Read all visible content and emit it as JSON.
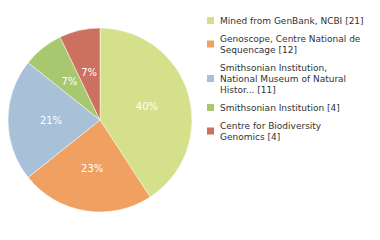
{
  "chart_data": {
    "type": "pie",
    "categories": [
      "Mined from GenBank, NCBI [21]",
      "Genoscope, Centre National de\nSequencage [12]",
      "Smithsonian Institution,\nNational Museum of Natural\nHistor... [11]",
      "Smithsonian Institution [4]",
      "Centre for Biodiversity\nGenomics [4]"
    ],
    "values": [
      40,
      23,
      21,
      7,
      7
    ],
    "value_labels": [
      "40%",
      "23%",
      "21%",
      "7%",
      "7%"
    ],
    "colors": [
      "#d4e08a",
      "#f0a060",
      "#a8c0d8",
      "#a8c870",
      "#cc7060"
    ],
    "data_labels": true,
    "legend": "right"
  }
}
